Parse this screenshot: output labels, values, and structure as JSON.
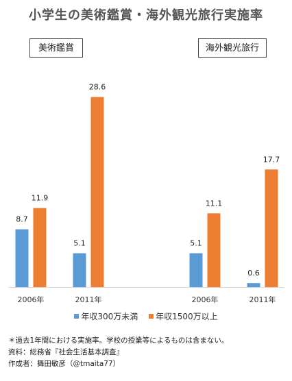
{
  "title": "小学生の美術鑑賞・海外観光旅行実施率",
  "notes": [
    "＊過去1年間における実施率。学校の授業等によるものは含まない。",
    "資料：総務省『社会生活基本調査』",
    "作成者：舞田敏彦（@tmaita77）"
  ],
  "chart_data": {
    "type": "bar",
    "panels": [
      {
        "title": "美術鑑賞",
        "categories": [
          "2006年",
          "2011年"
        ],
        "series": [
          {
            "name": "年収300万未満",
            "values": [
              8.7,
              5.1
            ]
          },
          {
            "name": "年収1500万以上",
            "values": [
              11.9,
              28.6
            ]
          }
        ]
      },
      {
        "title": "海外観光旅行",
        "categories": [
          "2006年",
          "2011年"
        ],
        "series": [
          {
            "name": "年収300万未満",
            "values": [
              5.1,
              0.6
            ]
          },
          {
            "name": "年収1500万以上",
            "values": [
              11.1,
              17.7
            ]
          }
        ]
      }
    ],
    "legend": {
      "position": "bottom",
      "entries": [
        "年収300万未満",
        "年収1500万以上"
      ]
    },
    "colors": [
      "#5b9bd5",
      "#ed7d31"
    ],
    "ylim": [
      0,
      30
    ],
    "grid": false
  }
}
